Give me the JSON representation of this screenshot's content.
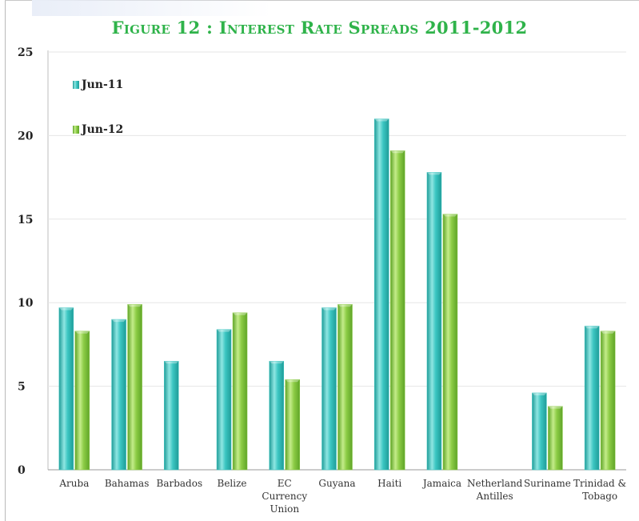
{
  "chart_data": {
    "type": "bar",
    "title": "Figure 12 : Interest Rate Spreads 2011-2012",
    "categories": [
      [
        "Aruba"
      ],
      [
        "Bahamas"
      ],
      [
        "Barbados"
      ],
      [
        "Belize"
      ],
      [
        "EC",
        "Currency",
        "Union"
      ],
      [
        "Guyana"
      ],
      [
        "Haiti"
      ],
      [
        "Jamaica"
      ],
      [
        "Netherland",
        "Antilles"
      ],
      [
        "Suriname"
      ],
      [
        "Trinidad &",
        "Tobago"
      ]
    ],
    "series": [
      {
        "name": "Jun-11",
        "color": "#3bc6c2",
        "values": [
          9.7,
          9.0,
          6.5,
          8.4,
          6.5,
          9.7,
          21.0,
          17.8,
          null,
          4.6,
          8.6
        ]
      },
      {
        "name": "Jun-12",
        "color": "#8ccc45",
        "values": [
          8.3,
          9.9,
          null,
          9.4,
          5.4,
          9.9,
          19.1,
          15.3,
          null,
          3.8,
          8.3
        ]
      }
    ],
    "yticks": [
      0,
      5,
      10,
      15,
      20,
      25
    ],
    "ylim": [
      0,
      25
    ],
    "grid": true,
    "legend": "top-left"
  }
}
